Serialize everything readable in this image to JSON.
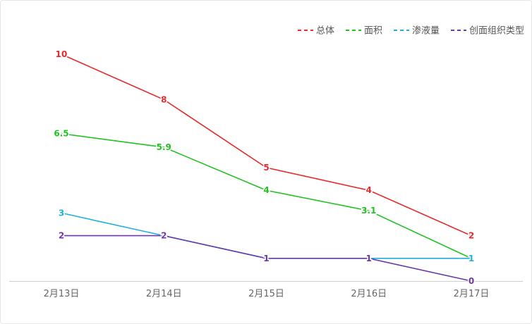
{
  "chart_data": {
    "type": "line",
    "title": "",
    "xlabel": "",
    "ylabel": "",
    "categories": [
      "2月13日",
      "2月14日",
      "2月15日",
      "2月16日",
      "2月17日"
    ],
    "ylim": [
      0,
      11
    ],
    "grid": false,
    "legend_position": "top-right",
    "series": [
      {
        "name": "总体",
        "color": "#e52b2b",
        "values": [
          10,
          8,
          5,
          4,
          2
        ],
        "labels": [
          "10",
          "8",
          "5",
          "4",
          "2"
        ]
      },
      {
        "name": "面积",
        "color": "#22c222",
        "values": [
          6.5,
          5.9,
          4,
          3.1,
          1
        ],
        "labels": [
          "6.5",
          "5.9",
          "4",
          "3.1",
          "1"
        ]
      },
      {
        "name": "渗液量",
        "color": "#1fb0e0",
        "values": [
          3,
          2,
          1,
          1,
          1
        ],
        "labels": [
          "3",
          "2",
          "1",
          "1",
          "1"
        ]
      },
      {
        "name": "创面组织类型",
        "color": "#6a3aa8",
        "values": [
          2,
          2,
          1,
          1,
          0
        ],
        "labels": [
          "2",
          "2",
          "1",
          "1",
          "0"
        ]
      }
    ]
  }
}
